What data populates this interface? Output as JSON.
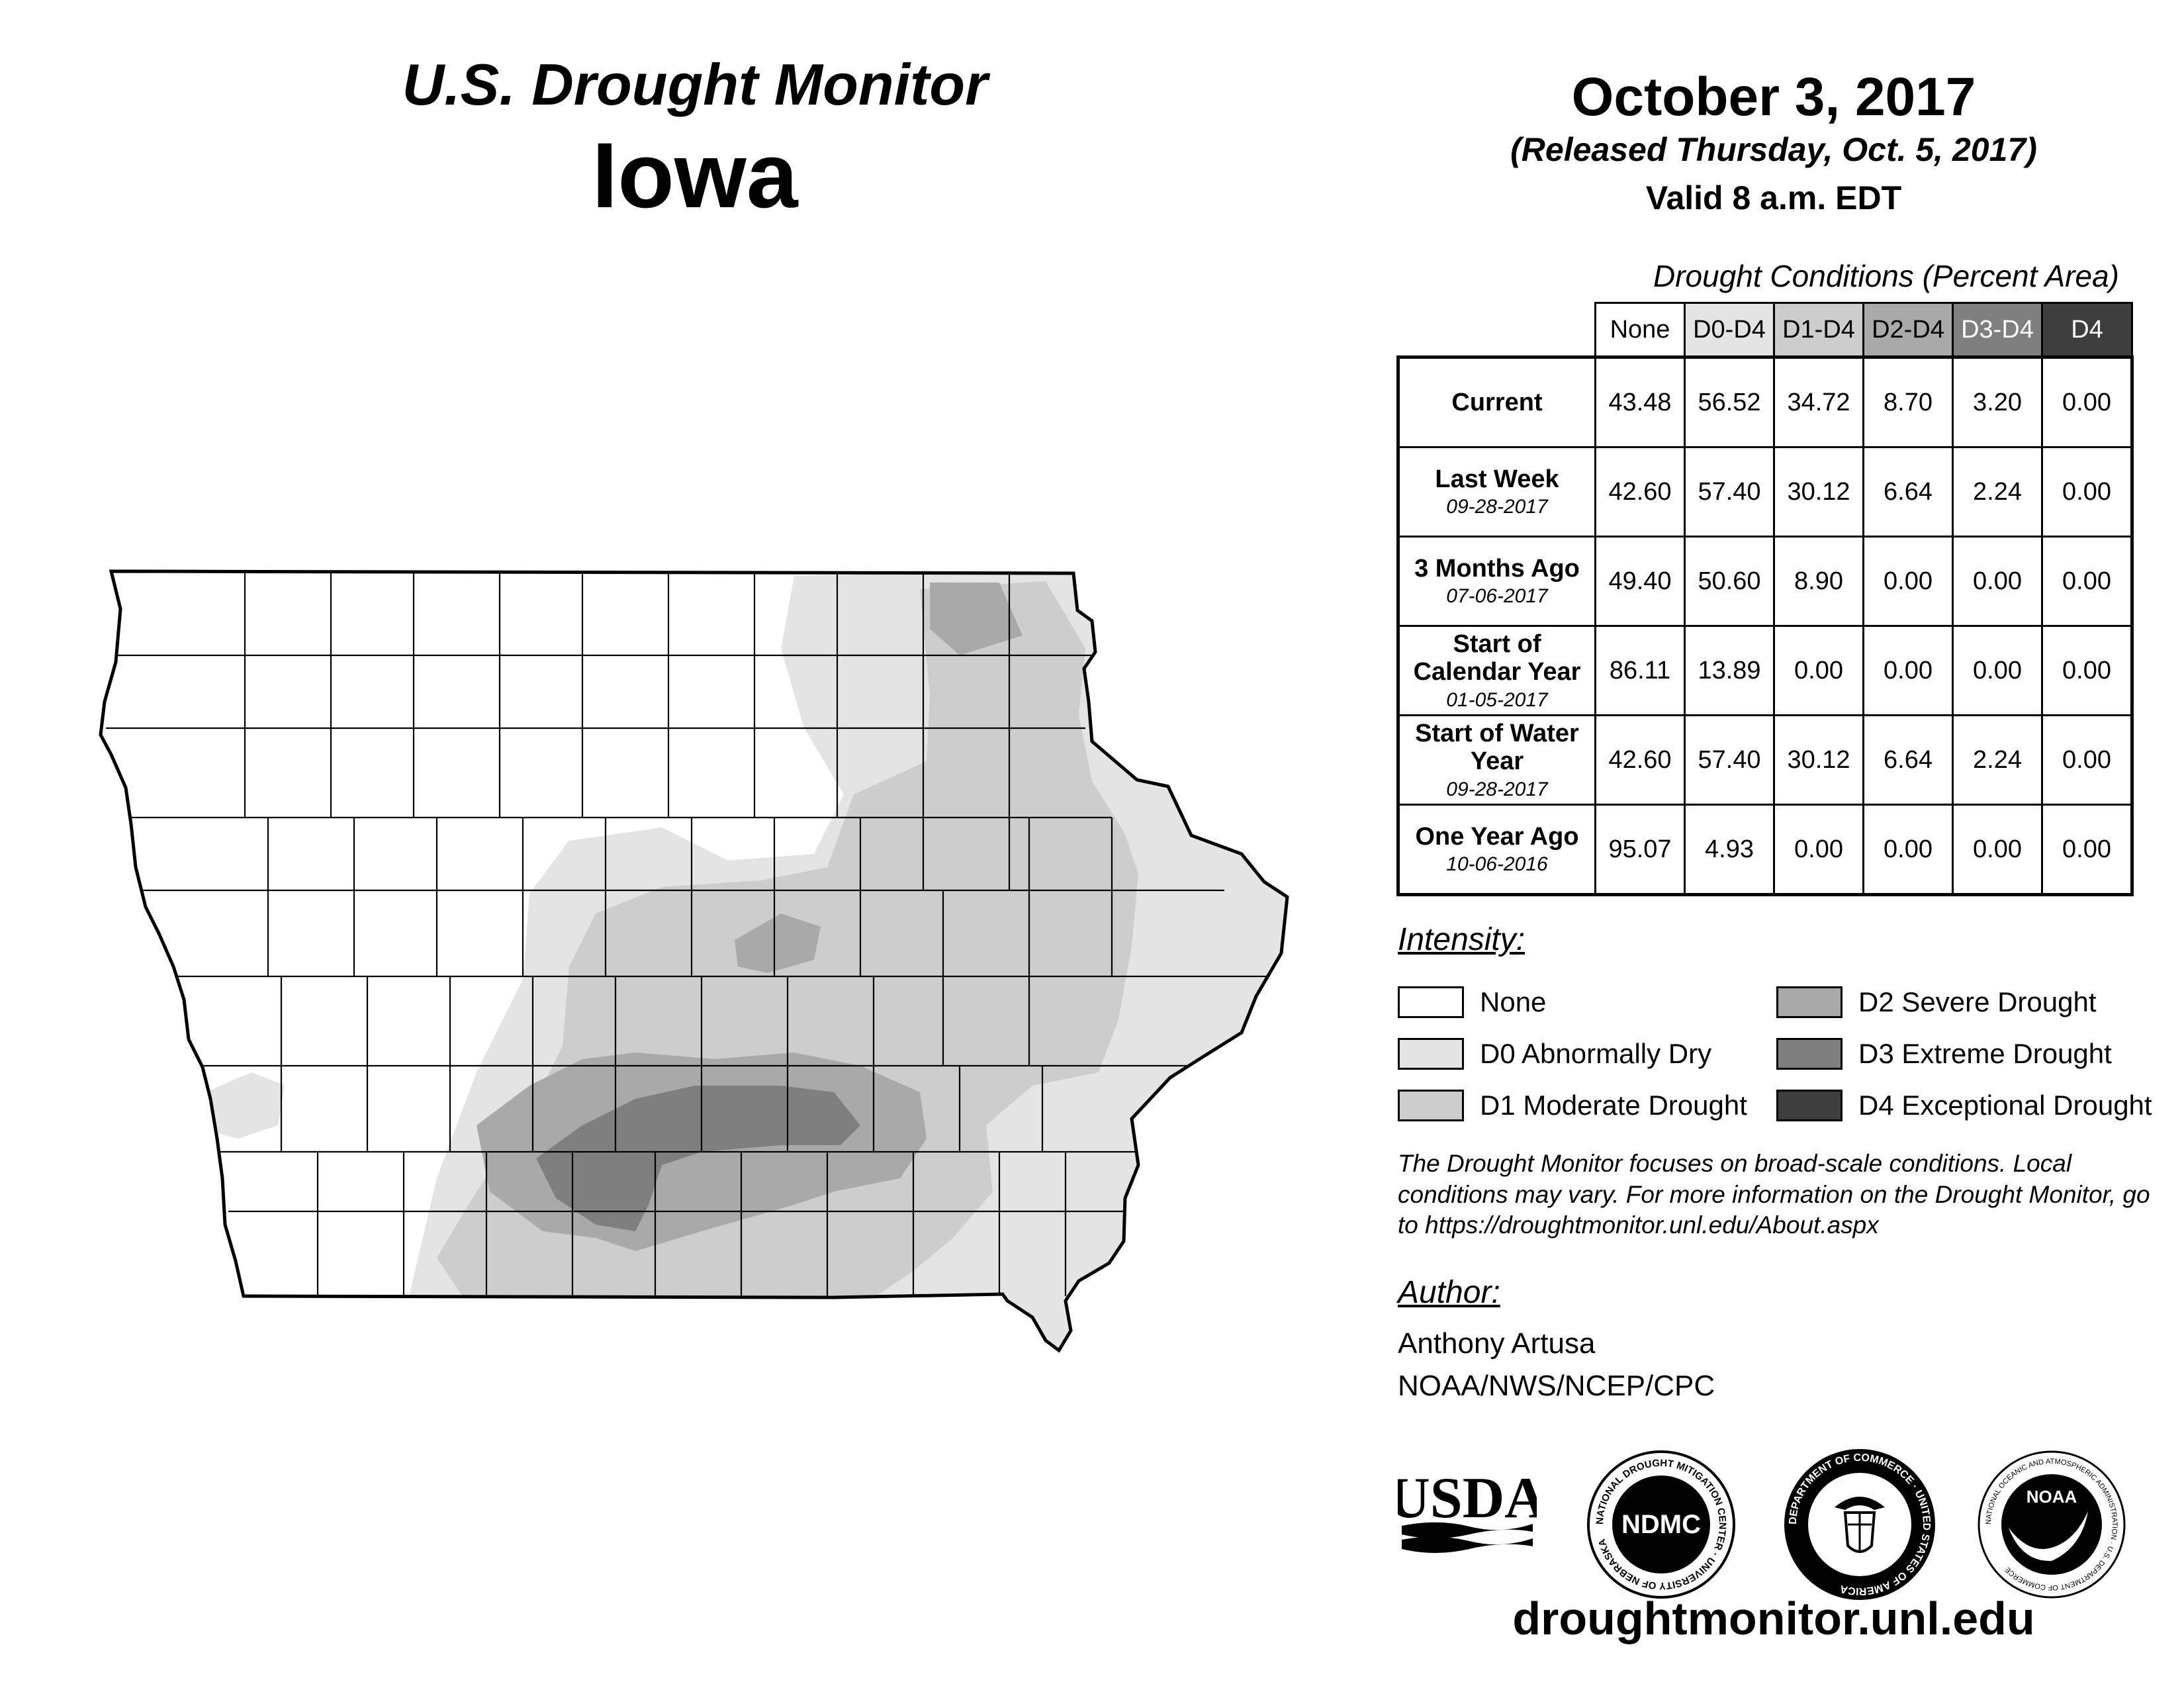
{
  "header": {
    "subtitle": "U.S. Drought Monitor",
    "state": "Iowa",
    "date": "October 3, 2017",
    "released": "(Released Thursday, Oct. 5, 2017)",
    "valid": "Valid 8 a.m. EDT"
  },
  "table": {
    "title": "Drought Conditions (Percent Area)",
    "columns": [
      {
        "label": "None",
        "bg": "#ffffff",
        "fg": "#000000"
      },
      {
        "label": "D0-D4",
        "bg": "#e4e4e4",
        "fg": "#000000"
      },
      {
        "label": "D1-D4",
        "bg": "#cdcdcd",
        "fg": "#000000"
      },
      {
        "label": "D2-D4",
        "bg": "#a9a9a9",
        "fg": "#000000"
      },
      {
        "label": "D3-D4",
        "bg": "#7f7f7f",
        "fg": "#ffffff"
      },
      {
        "label": "D4",
        "bg": "#3e3e3e",
        "fg": "#ffffff"
      }
    ],
    "rows": [
      {
        "label": "Current",
        "date": "",
        "values": [
          "43.48",
          "56.52",
          "34.72",
          "8.70",
          "3.20",
          "0.00"
        ]
      },
      {
        "label": "Last Week",
        "date": "09-28-2017",
        "values": [
          "42.60",
          "57.40",
          "30.12",
          "6.64",
          "2.24",
          "0.00"
        ]
      },
      {
        "label": "3 Months Ago",
        "date": "07-06-2017",
        "values": [
          "49.40",
          "50.60",
          "8.90",
          "0.00",
          "0.00",
          "0.00"
        ]
      },
      {
        "label": "Start of Calendar Year",
        "date": "01-05-2017",
        "values": [
          "86.11",
          "13.89",
          "0.00",
          "0.00",
          "0.00",
          "0.00"
        ]
      },
      {
        "label": "Start of Water Year",
        "date": "09-28-2017",
        "values": [
          "42.60",
          "57.40",
          "30.12",
          "6.64",
          "2.24",
          "0.00"
        ]
      },
      {
        "label": "One Year Ago",
        "date": "10-06-2016",
        "values": [
          "95.07",
          "4.93",
          "0.00",
          "0.00",
          "0.00",
          "0.00"
        ]
      }
    ]
  },
  "legend": {
    "title": "Intensity:",
    "items": [
      {
        "label": "None",
        "color": "#ffffff"
      },
      {
        "label": "D0 Abnormally Dry",
        "color": "#e4e4e4"
      },
      {
        "label": "D1 Moderate Drought",
        "color": "#cdcdcd"
      },
      {
        "label": "D2 Severe Drought",
        "color": "#a9a9a9"
      },
      {
        "label": "D3 Extreme Drought",
        "color": "#7f7f7f"
      },
      {
        "label": "D4 Exceptional Drought",
        "color": "#3e3e3e"
      }
    ]
  },
  "note": "The Drought Monitor focuses on broad-scale conditions. Local conditions may vary. For more information on the Drought Monitor, go to https://droughtmonitor.unl.edu/About.aspx",
  "author": {
    "title": "Author:",
    "name": "Anthony Artusa",
    "org": "NOAA/NWS/NCEP/CPC"
  },
  "logos": {
    "usda": "USDA",
    "ndmc": "NDMC",
    "ndmc_ring": "NATIONAL DROUGHT MITIGATION CENTER · UNIVERSITY OF NEBRASKA",
    "doc_ring": "DEPARTMENT OF COMMERCE · UNITED STATES OF AMERICA",
    "noaa": "NOAA",
    "noaa_ring": "NATIONAL OCEANIC AND ATMOSPHERIC ADMINISTRATION · U.S. DEPARTMENT OF COMMERCE"
  },
  "url": "droughtmonitor.unl.edu"
}
